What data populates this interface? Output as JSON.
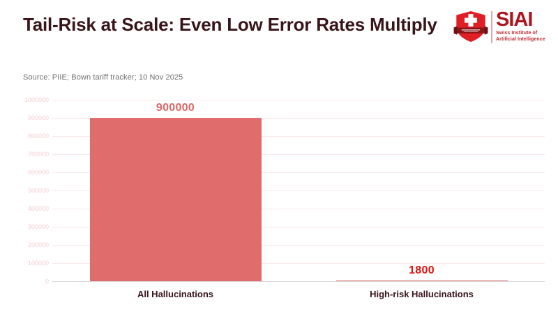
{
  "header": {
    "title": "Tail-Risk at Scale: Even Low Error Rates Multiply",
    "source": "Source: PIIE; Bown tariff tracker; 10 Nov 2025"
  },
  "logo": {
    "wordmark": "SIAI",
    "subtitle_line1": "Swiss Institute of",
    "subtitle_line2": "Artificial Intelligence",
    "shield_icon": "swiss-shield-icon",
    "colors": {
      "shield_red": "#E01E25",
      "banner_dark_red": "#8A1418",
      "wordmark_red": "#B0151E",
      "subtitle_red": "#C0262B",
      "divider_pink": "#E0A5A5"
    }
  },
  "colors": {
    "title_maroon": "#39141A",
    "source_gray": "#6F6F6F",
    "background": "#FFFFFF"
  },
  "chart_data": {
    "type": "bar",
    "title": "Tail-Risk at Scale: Even Low Error Rates Multiply",
    "xlabel": "",
    "ylabel": "",
    "categories": [
      "All Hallucinations",
      "High-risk Hallucinations"
    ],
    "values": [
      900000,
      1800
    ],
    "value_labels": [
      "900000",
      "1800"
    ],
    "value_label_colors": [
      "#DF6565",
      "#E3120B"
    ],
    "bar_color": "#E06C6C",
    "ylim": [
      0,
      1000000
    ],
    "ytick_step": 100000,
    "yticks": [
      0,
      100000,
      200000,
      300000,
      400000,
      500000,
      600000,
      700000,
      800000,
      900000,
      1000000
    ],
    "grid": true,
    "legend": "none",
    "gridline_color": "#FAE7E7",
    "tick_label_color": "#F5CFCF",
    "axis_line_color": "#D8D8D8",
    "category_label_color": "#39141A"
  }
}
